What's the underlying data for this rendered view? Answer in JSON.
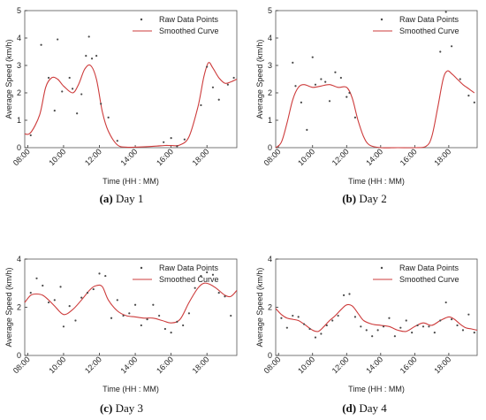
{
  "charts": [
    {
      "caption_letter": "(a)",
      "caption_text": "Day 1",
      "chart_data": {
        "type": "line",
        "ylabel": "Average Speed (km/h)",
        "xlabel": "Time (HH : MM)",
        "x_ticks": [
          "08:00",
          "10:00",
          "12:00",
          "14:00",
          "16:00",
          "18:00"
        ],
        "xlim": [
          "07:50",
          "19:40"
        ],
        "ylim": [
          0,
          5
        ],
        "y_ticks": [
          "0",
          "1",
          "2",
          "3",
          "4",
          "5"
        ],
        "legend": [
          "Raw Data Points",
          "Smoothed Curve"
        ],
        "legend_position": "top-right",
        "series": [
          {
            "name": "Raw Data Points",
            "mark": "points",
            "color": "#4a4a4a",
            "x": [
              "08:10",
              "08:45",
              "09:10",
              "09:30",
              "09:40",
              "09:55",
              "10:20",
              "10:30",
              "10:45",
              "11:00",
              "11:15",
              "11:25",
              "11:35",
              "11:50",
              "12:05",
              "12:30",
              "13:00",
              "15:35",
              "16:00",
              "16:20",
              "16:45",
              "17:40",
              "18:00",
              "18:20",
              "18:40",
              "19:10",
              "19:30"
            ],
            "y": [
              0.45,
              3.75,
              2.55,
              1.35,
              3.95,
              2.05,
              2.55,
              2.15,
              1.25,
              1.95,
              3.35,
              4.05,
              3.25,
              3.35,
              1.6,
              1.1,
              0.25,
              0.2,
              0.35,
              0.05,
              0.3,
              1.55,
              2.95,
              2.2,
              1.75,
              2.3,
              2.55
            ]
          },
          {
            "name": "Smoothed Curve",
            "mark": "line",
            "color": "#cd3b3b",
            "x": [
              "07:50",
              "08:10",
              "08:40",
              "09:00",
              "09:20",
              "09:40",
              "10:00",
              "10:30",
              "10:50",
              "11:10",
              "11:30",
              "11:50",
              "12:10",
              "12:30",
              "13:00",
              "13:30",
              "14:00",
              "15:00",
              "15:40",
              "16:00",
              "16:30",
              "17:00",
              "17:30",
              "17:50",
              "18:05",
              "18:20",
              "18:40",
              "19:00",
              "19:20",
              "19:40"
            ],
            "y": [
              0.5,
              0.55,
              1.2,
              2.2,
              2.55,
              2.5,
              2.25,
              2.0,
              2.3,
              2.85,
              3.0,
              2.5,
              1.3,
              0.6,
              0.1,
              0.02,
              0.02,
              0.05,
              0.08,
              0.08,
              0.1,
              0.4,
              1.5,
              2.6,
              3.1,
              2.9,
              2.55,
              2.35,
              2.4,
              2.5
            ]
          }
        ]
      }
    },
    {
      "caption_letter": "(b)",
      "caption_text": "Day 2",
      "chart_data": {
        "type": "line",
        "ylabel": "Average Speed (km/h)",
        "xlabel": "Time (HH : MM)",
        "x_ticks": [
          "08:00",
          "10:00",
          "12:00",
          "14:00",
          "16:00",
          "18:00"
        ],
        "xlim": [
          "07:50",
          "19:40"
        ],
        "ylim": [
          0,
          5
        ],
        "y_ticks": [
          "0",
          "1",
          "2",
          "3",
          "4",
          "5"
        ],
        "legend": [
          "Raw Data Points",
          "Smoothed Curve"
        ],
        "legend_position": "top-right",
        "series": [
          {
            "name": "Raw Data Points",
            "mark": "points",
            "color": "#4a4a4a",
            "x": [
              "08:50",
              "09:00",
              "09:20",
              "09:40",
              "10:00",
              "10:10",
              "10:30",
              "10:45",
              "11:00",
              "11:20",
              "11:40",
              "12:00",
              "12:10",
              "12:30",
              "17:30",
              "17:50",
              "18:10",
              "18:40",
              "19:10",
              "19:30"
            ],
            "y": [
              3.1,
              2.25,
              1.65,
              0.65,
              3.3,
              2.3,
              2.5,
              2.4,
              1.7,
              2.75,
              2.55,
              1.85,
              2.0,
              1.1,
              3.5,
              4.95,
              3.7,
              2.5,
              1.9,
              1.65
            ]
          },
          {
            "name": "Smoothed Curve",
            "mark": "line",
            "color": "#cd3b3b",
            "x": [
              "07:50",
              "08:10",
              "08:30",
              "08:50",
              "09:10",
              "09:30",
              "10:00",
              "10:30",
              "11:00",
              "11:30",
              "12:00",
              "12:20",
              "12:40",
              "13:00",
              "13:20",
              "14:00",
              "15:00",
              "16:00",
              "16:40",
              "17:00",
              "17:20",
              "17:40",
              "17:55",
              "18:10",
              "18:30",
              "18:50",
              "19:10",
              "19:30"
            ],
            "y": [
              0.0,
              0.2,
              0.9,
              1.75,
              2.2,
              2.3,
              2.2,
              2.25,
              2.3,
              2.2,
              2.2,
              1.8,
              1.0,
              0.4,
              0.1,
              0.0,
              0.0,
              0.0,
              0.05,
              0.4,
              1.4,
              2.5,
              2.8,
              2.7,
              2.5,
              2.3,
              2.15,
              2.0
            ]
          }
        ]
      }
    },
    {
      "caption_letter": "(c)",
      "caption_text": "Day 3",
      "chart_data": {
        "type": "line",
        "ylabel": "Average Speed (km/h)",
        "xlabel": "Time (HH : MM)",
        "x_ticks": [
          "08:00",
          "10:00",
          "12:00",
          "14:00",
          "16:00",
          "18:00"
        ],
        "xlim": [
          "07:50",
          "19:40"
        ],
        "ylim": [
          0,
          4
        ],
        "y_ticks": [
          "0",
          "2",
          "4"
        ],
        "legend": [
          "Raw Data Points",
          "Smoothed Curve"
        ],
        "legend_position": "top-right",
        "series": [
          {
            "name": "Raw Data Points",
            "mark": "points",
            "color": "#4a4a4a",
            "x": [
              "08:10",
              "08:30",
              "08:50",
              "09:10",
              "09:30",
              "09:50",
              "10:00",
              "10:20",
              "10:40",
              "11:00",
              "11:20",
              "11:40",
              "12:00",
              "12:20",
              "12:40",
              "13:00",
              "13:20",
              "13:40",
              "14:00",
              "14:20",
              "14:40",
              "15:00",
              "15:20",
              "15:40",
              "16:00",
              "16:20",
              "16:40",
              "17:00",
              "17:20",
              "17:40",
              "18:00",
              "18:20",
              "18:40",
              "19:00",
              "19:20"
            ],
            "y": [
              2.6,
              3.2,
              2.9,
              2.2,
              2.3,
              2.85,
              1.2,
              2.05,
              1.45,
              2.4,
              2.6,
              2.75,
              3.4,
              3.3,
              1.55,
              2.3,
              1.65,
              1.75,
              2.1,
              1.25,
              1.5,
              2.1,
              1.65,
              1.1,
              0.95,
              1.4,
              1.25,
              1.75,
              2.8,
              3.3,
              3.45,
              3.35,
              2.6,
              2.45,
              1.65
            ]
          },
          {
            "name": "Smoothed Curve",
            "mark": "line",
            "color": "#cd3b3b",
            "x": [
              "07:50",
              "08:10",
              "08:30",
              "08:50",
              "09:10",
              "09:30",
              "10:00",
              "10:30",
              "11:00",
              "11:30",
              "11:50",
              "12:10",
              "12:30",
              "13:00",
              "13:30",
              "14:00",
              "14:30",
              "15:00",
              "15:30",
              "16:00",
              "16:30",
              "17:00",
              "17:30",
              "17:50",
              "18:10",
              "18:30",
              "19:00",
              "19:20",
              "19:40"
            ],
            "y": [
              2.2,
              2.5,
              2.55,
              2.5,
              2.3,
              2.05,
              1.7,
              1.9,
              2.3,
              2.75,
              2.9,
              2.85,
              2.3,
              1.85,
              1.65,
              1.6,
              1.55,
              1.55,
              1.45,
              1.35,
              1.5,
              2.2,
              2.8,
              3.0,
              2.95,
              2.8,
              2.5,
              2.45,
              2.7
            ]
          }
        ]
      }
    },
    {
      "caption_letter": "(d)",
      "caption_text": "Day 4",
      "chart_data": {
        "type": "line",
        "ylabel": "Average Speed (km/h)",
        "xlabel": "Time (HH : MM)",
        "x_ticks": [
          "08:00",
          "10:00",
          "12:00",
          "14:00",
          "16:00",
          "18:00"
        ],
        "xlim": [
          "07:50",
          "19:40"
        ],
        "ylim": [
          0,
          4
        ],
        "y_ticks": [
          "0",
          "2",
          "4"
        ],
        "legend": [
          "Raw Data Points",
          "Smoothed Curve"
        ],
        "legend_position": "top-right",
        "series": [
          {
            "name": "Raw Data Points",
            "mark": "points",
            "color": "#4a4a4a",
            "x": [
              "08:10",
              "08:30",
              "08:50",
              "09:10",
              "09:30",
              "09:50",
              "10:10",
              "10:30",
              "10:50",
              "11:10",
              "11:30",
              "11:50",
              "12:10",
              "12:30",
              "12:50",
              "13:10",
              "13:30",
              "13:50",
              "14:10",
              "14:30",
              "14:50",
              "15:10",
              "15:30",
              "15:50",
              "16:10",
              "16:30",
              "16:50",
              "17:10",
              "17:30",
              "17:50",
              "18:10",
              "18:30",
              "18:50",
              "19:10",
              "19:30"
            ],
            "y": [
              1.55,
              1.15,
              1.65,
              1.6,
              1.3,
              1.1,
              0.75,
              0.9,
              1.25,
              1.45,
              1.65,
              2.5,
              2.55,
              1.6,
              1.2,
              1.05,
              0.8,
              1.05,
              1.2,
              1.55,
              0.8,
              1.15,
              1.45,
              0.95,
              1.25,
              1.2,
              1.2,
              0.95,
              1.45,
              2.2,
              1.5,
              1.25,
              1.05,
              1.7,
              0.95
            ]
          },
          {
            "name": "Smoothed Curve",
            "mark": "line",
            "color": "#cd3b3b",
            "x": [
              "07:50",
              "08:10",
              "08:30",
              "08:50",
              "09:10",
              "09:30",
              "10:00",
              "10:20",
              "10:40",
              "11:00",
              "11:20",
              "11:40",
              "12:00",
              "12:20",
              "12:40",
              "13:00",
              "13:30",
              "14:00",
              "14:30",
              "15:00",
              "15:30",
              "16:00",
              "16:30",
              "17:00",
              "17:30",
              "18:00",
              "18:20",
              "18:40",
              "19:00",
              "19:20",
              "19:40"
            ],
            "y": [
              1.95,
              1.7,
              1.55,
              1.5,
              1.45,
              1.3,
              1.05,
              1.0,
              1.2,
              1.45,
              1.65,
              1.9,
              2.1,
              2.05,
              1.75,
              1.45,
              1.3,
              1.25,
              1.2,
              1.05,
              1.0,
              1.2,
              1.35,
              1.25,
              1.45,
              1.6,
              1.5,
              1.3,
              1.15,
              1.1,
              1.05
            ]
          }
        ]
      }
    }
  ]
}
